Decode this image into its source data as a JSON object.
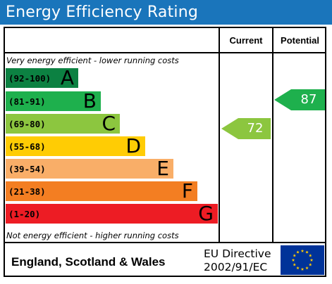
{
  "title": "Energy Efficiency Rating",
  "columns": {
    "current": "Current",
    "potential": "Potential"
  },
  "captions": {
    "top": "Very energy efficient - lower running costs",
    "bottom": "Not energy efficient - higher running costs"
  },
  "bands": [
    {
      "range": "(92-100)",
      "letter": "A",
      "color": "#0c8142"
    },
    {
      "range": "(81-91)",
      "letter": "B",
      "color": "#1eb04d"
    },
    {
      "range": "(69-80)",
      "letter": "C",
      "color": "#8cc63f"
    },
    {
      "range": "(55-68)",
      "letter": "D",
      "color": "#ffcc04"
    },
    {
      "range": "(39-54)",
      "letter": "E",
      "color": "#f9ae68"
    },
    {
      "range": "(21-38)",
      "letter": "F",
      "color": "#f37e22"
    },
    {
      "range": "(1-20)",
      "letter": "G",
      "color": "#ed1c24"
    }
  ],
  "ratings": {
    "current": {
      "value": "72",
      "color": "#8cc63f"
    },
    "potential": {
      "value": "87",
      "color": "#1eb04d"
    }
  },
  "footer": {
    "region": "England, Scotland & Wales",
    "directive_line1": "EU Directive",
    "directive_line2": "2002/91/EC",
    "flag_color": "#003399",
    "star_color": "#ffcc00"
  }
}
